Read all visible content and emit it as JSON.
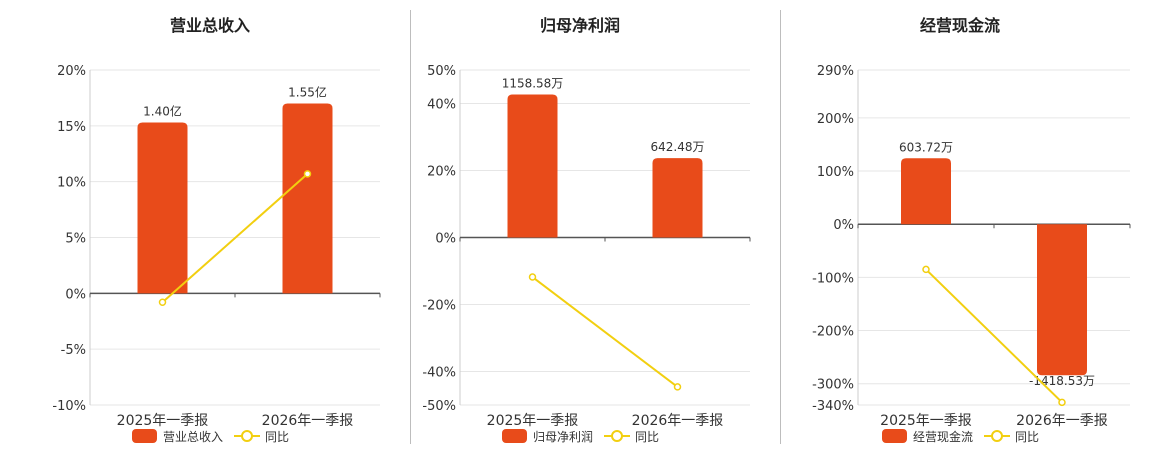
{
  "colors": {
    "bar": "#e84b1a",
    "line": "#f2cf10",
    "grid": "#e6e6e6",
    "axis": "#555555",
    "text": "#333333"
  },
  "legend_icons": {
    "bar": "rounded-rect-swatch-icon",
    "line": "line-circle-marker-icon"
  },
  "chart_data": [
    {
      "type": "bar",
      "title": "营业总收入",
      "categories": [
        "2025年一季报",
        "2026年一季报"
      ],
      "ylim": [
        -10,
        20
      ],
      "yticks": [
        20,
        15,
        10,
        5,
        0,
        -5,
        -10
      ],
      "ytick_labels": [
        "20%",
        "15%",
        "10%",
        "5%",
        "0%",
        "-5%",
        "-10%"
      ],
      "grid": true,
      "legend_position": "bottom-center",
      "series": [
        {
          "name": "营业总收入",
          "kind": "bar",
          "values": [
            15.3,
            17.0
          ],
          "value_labels": [
            "1.40亿",
            "1.55亿"
          ]
        },
        {
          "name": "同比",
          "kind": "line",
          "values": [
            -0.8,
            10.7
          ]
        }
      ]
    },
    {
      "type": "bar",
      "title": "归母净利润",
      "categories": [
        "2025年一季报",
        "2026年一季报"
      ],
      "ylim": [
        -50,
        50
      ],
      "yticks": [
        50,
        40,
        20,
        0,
        -20,
        -40,
        -50
      ],
      "ytick_labels": [
        "50%",
        "40%",
        "20%",
        "0%",
        "-20%",
        "-40%",
        "-50%"
      ],
      "grid": true,
      "legend_position": "bottom-center",
      "series": [
        {
          "name": "归母净利润",
          "kind": "bar",
          "values": [
            42.7,
            23.7
          ],
          "value_labels": [
            "1158.58万",
            "642.48万"
          ]
        },
        {
          "name": "同比",
          "kind": "line",
          "values": [
            -11.8,
            -44.6
          ]
        }
      ]
    },
    {
      "type": "bar",
      "title": "经营现金流",
      "categories": [
        "2025年一季报",
        "2026年一季报"
      ],
      "ylim": [
        -340,
        290
      ],
      "yticks": [
        290,
        200,
        100,
        0,
        -100,
        -200,
        -300,
        -340
      ],
      "ytick_labels": [
        "290%",
        "200%",
        "100%",
        "0%",
        "-100%",
        "-200%",
        "-300%",
        "-340%"
      ],
      "grid": true,
      "legend_position": "bottom-center",
      "series": [
        {
          "name": "经营现金流",
          "kind": "bar",
          "values": [
            124,
            -284
          ],
          "value_labels": [
            "603.72万",
            "-1418.53万"
          ]
        },
        {
          "name": "同比",
          "kind": "line",
          "values": [
            -85,
            -335
          ]
        }
      ]
    }
  ]
}
